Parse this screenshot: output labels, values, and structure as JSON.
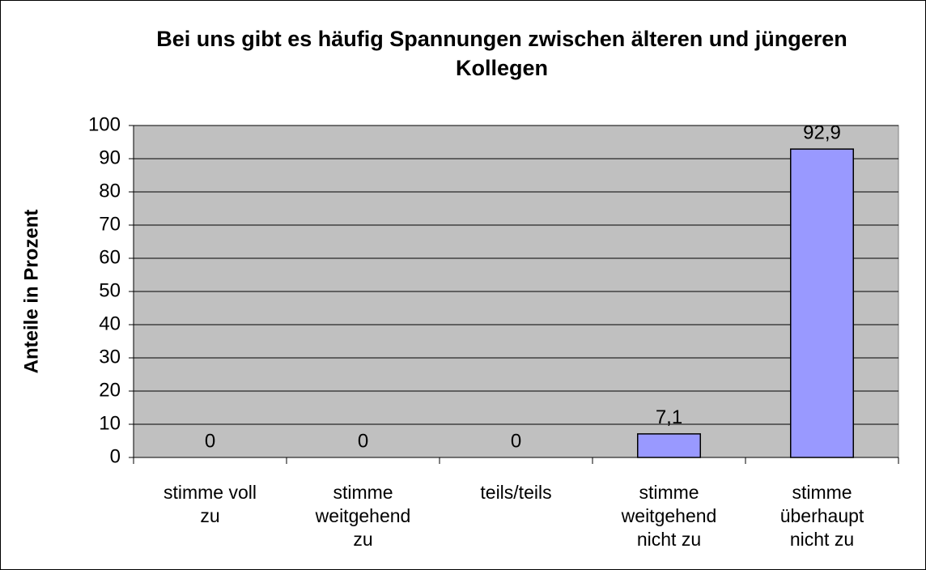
{
  "chart_data": {
    "type": "bar",
    "title": "Bei uns gibt es häufig Spannungen zwischen älteren und jüngeren Kollegen",
    "y_label": "Anteile in Prozent",
    "categories": [
      "stimme voll zu",
      "stimme weitgehend zu",
      "teils/teils",
      "stimme weitgehend nicht zu",
      "stimme überhaupt nicht zu"
    ],
    "values": [
      0,
      0,
      0,
      7.1,
      92.9
    ],
    "value_labels": [
      "0",
      "0",
      "0",
      "7,1",
      "92,9"
    ],
    "color": "#9999ff",
    "background": "#c0c0c0",
    "ylim": [
      0,
      100
    ],
    "yticks": [
      0,
      10,
      20,
      30,
      40,
      50,
      60,
      70,
      80,
      90,
      100
    ],
    "grid": true
  }
}
